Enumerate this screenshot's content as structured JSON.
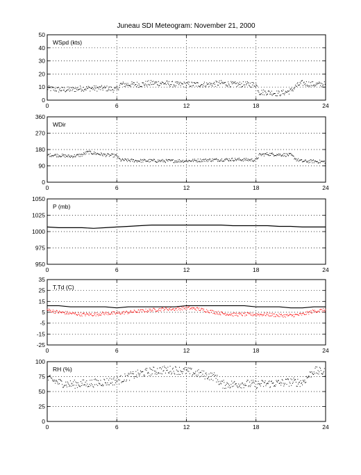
{
  "title": "Juneau SDI Meteogram:  November 21, 2000",
  "chart_data": [
    {
      "type": "scatter",
      "label": "WSpd (kts)",
      "ylim": [
        0,
        50
      ],
      "yticks": [
        0,
        10,
        20,
        30,
        40,
        50
      ],
      "xlim": [
        0,
        24
      ],
      "xticks": [
        0,
        6,
        12,
        18,
        24
      ],
      "grid": "dotted",
      "series": [
        {
          "color": "#000000",
          "x": [
            0,
            1,
            2,
            3,
            4,
            5,
            6,
            6.3,
            7,
            8,
            9,
            10,
            11,
            12,
            13,
            14,
            15,
            16,
            17,
            18,
            18.3,
            19,
            20,
            21,
            21.5,
            22,
            23,
            24
          ],
          "y": [
            9,
            8,
            8,
            9,
            9,
            9,
            8,
            12,
            12,
            12,
            13,
            13,
            12,
            12,
            12,
            12,
            13,
            12,
            12,
            12,
            6,
            6,
            5,
            7,
            11,
            13,
            12,
            12
          ]
        }
      ]
    },
    {
      "type": "scatter",
      "label": "WDir",
      "ylim": [
        0,
        360
      ],
      "yticks": [
        0,
        90,
        180,
        270,
        360
      ],
      "xlim": [
        0,
        24
      ],
      "xticks": [
        0,
        6,
        12,
        18,
        24
      ],
      "grid": "dotted",
      "series": [
        {
          "color": "#000000",
          "x": [
            0,
            1,
            2,
            3,
            3.5,
            4,
            5,
            6,
            6.3,
            7,
            8,
            9,
            10,
            11,
            12,
            13,
            14,
            15,
            16,
            17,
            18,
            18.3,
            19,
            20,
            21,
            21.5,
            22,
            23,
            24
          ],
          "y": [
            150,
            148,
            142,
            150,
            165,
            160,
            150,
            145,
            122,
            120,
            118,
            118,
            117,
            117,
            118,
            120,
            122,
            124,
            125,
            124,
            122,
            150,
            155,
            152,
            150,
            125,
            115,
            115,
            112
          ]
        }
      ]
    },
    {
      "type": "line",
      "label": "P (mb)",
      "ylim": [
        950,
        1050
      ],
      "yticks": [
        950,
        975,
        1000,
        1025,
        1050
      ],
      "xlim": [
        0,
        24
      ],
      "xticks": [
        0,
        6,
        12,
        18,
        24
      ],
      "grid": "dotted",
      "series": [
        {
          "color": "#000000",
          "x": [
            0,
            1,
            2,
            3,
            4,
            5,
            6,
            7,
            8,
            9,
            10,
            11,
            12,
            13,
            14,
            15,
            16,
            17,
            18,
            19,
            20,
            21,
            22,
            23,
            24
          ],
          "y": [
            1007,
            1006,
            1006,
            1006,
            1005,
            1006,
            1007,
            1008,
            1009,
            1010,
            1010,
            1010,
            1010,
            1010,
            1010,
            1010,
            1009,
            1009,
            1009,
            1009,
            1008,
            1008,
            1007,
            1007,
            1007
          ]
        }
      ]
    },
    {
      "type": "line",
      "label": "T,Td (C)",
      "ylim": [
        -25,
        35
      ],
      "yticks": [
        -25,
        -15,
        -5,
        5,
        15,
        25,
        35
      ],
      "xlim": [
        0,
        24
      ],
      "xticks": [
        0,
        6,
        12,
        18,
        24
      ],
      "grid": "dotted",
      "series": [
        {
          "color": "#000000",
          "x": [
            0,
            1,
            2,
            3,
            4,
            5,
            6,
            7,
            8,
            9,
            10,
            11,
            12,
            13,
            14,
            15,
            16,
            17,
            18,
            19,
            20,
            21,
            22,
            23,
            24
          ],
          "y": [
            11,
            11,
            10,
            10,
            10,
            10,
            9,
            10,
            10,
            10,
            10,
            10,
            11,
            11,
            11,
            11,
            11,
            11,
            10,
            10,
            10,
            9,
            9,
            10,
            10
          ]
        },
        {
          "color": "#ff0000",
          "x": [
            0,
            1,
            2,
            3,
            4,
            5,
            6,
            7,
            8,
            9,
            10,
            11,
            12,
            13,
            14,
            15,
            16,
            17,
            18,
            19,
            20,
            21,
            22,
            23,
            24
          ],
          "y": [
            7,
            5,
            4,
            3,
            3,
            4,
            4,
            5,
            6,
            7,
            8,
            8,
            9,
            8,
            6,
            4,
            3,
            3,
            3,
            3,
            2,
            2,
            3,
            6,
            7
          ]
        }
      ]
    },
    {
      "type": "scatter",
      "label": "RH (%)",
      "ylim": [
        0,
        100
      ],
      "yticks": [
        0,
        25,
        50,
        75,
        100
      ],
      "xlim": [
        0,
        24
      ],
      "xticks": [
        0,
        6,
        12,
        18,
        24
      ],
      "grid": "dotted",
      "series": [
        {
          "color": "#000000",
          "x": [
            0,
            1,
            2,
            3,
            4,
            5,
            6,
            7,
            8,
            9,
            10,
            11,
            12,
            13,
            14,
            14.5,
            15,
            16,
            17,
            18,
            19,
            20,
            21,
            22,
            23,
            24
          ],
          "y": [
            72,
            65,
            62,
            63,
            64,
            66,
            68,
            75,
            80,
            84,
            86,
            86,
            84,
            80,
            76,
            75,
            62,
            62,
            63,
            62,
            63,
            64,
            66,
            65,
            85,
            82
          ]
        }
      ]
    }
  ]
}
